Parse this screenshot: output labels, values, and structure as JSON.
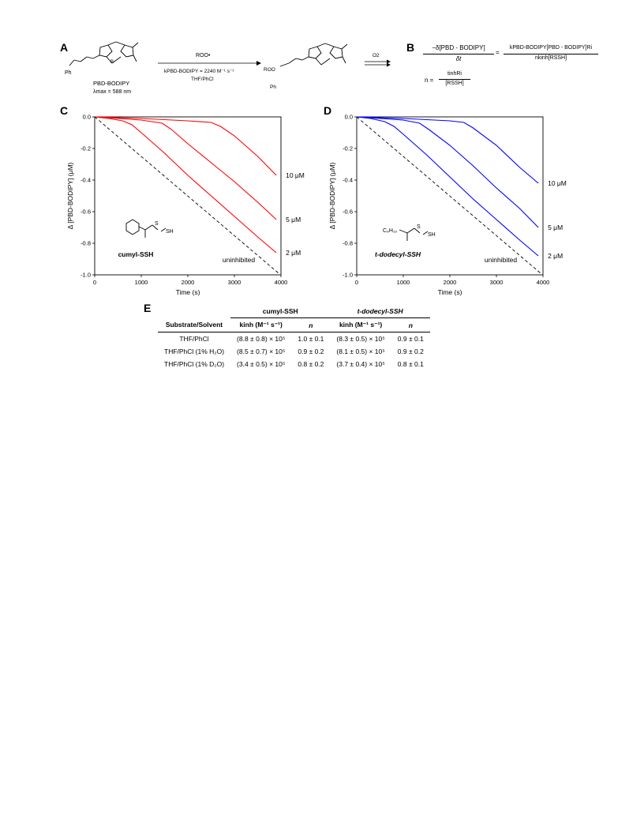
{
  "panels": {
    "A": "A",
    "B": "B",
    "C": "C",
    "D": "D",
    "E": "E"
  },
  "scheme": {
    "reagent_label": "PBD-BODIPY",
    "lambda_label": "λmax = 588 nm",
    "arrow_top": "ROO•",
    "arrow_rate": "kPBD-BODIPY = 2240 M⁻¹ s⁻¹",
    "arrow_solvent": "THF/PhCl",
    "o2_label": "O2",
    "ph_label": "Ph",
    "roo_label": "ROO"
  },
  "equations": {
    "eq1_left_num": "−δ[PBD - BODIPY]",
    "eq1_left_den": "δt",
    "eq1_right_num": "kPBD-BODIPY[PBD - BODIPY]Ri",
    "eq1_right_den": "nkinh[RSSH]",
    "eq2_left": "n =",
    "eq2_num": "tinhRi",
    "eq2_den": "[RSSH]"
  },
  "chart_data": [
    {
      "type": "line",
      "panel": "C",
      "xlabel": "Time (s)",
      "ylabel": "Δ [PBD-BODIPY] (μM)",
      "xlim": [
        0,
        4000
      ],
      "ylim": [
        -1.0,
        0.0
      ],
      "xticks": [
        0,
        1000,
        2000,
        3000,
        4000
      ],
      "yticks": [
        0.0,
        -0.2,
        -0.4,
        -0.6,
        -0.8,
        -1.0
      ],
      "color": "#ff0000",
      "compound_label": "cumyl-SSH",
      "series": [
        {
          "name": "10 μM",
          "x": [
            0,
            1000,
            2000,
            2500,
            2700,
            3000,
            3500,
            3900
          ],
          "y": [
            0,
            -0.01,
            -0.025,
            -0.035,
            -0.06,
            -0.12,
            -0.25,
            -0.37
          ]
        },
        {
          "name": "5 μM",
          "x": [
            0,
            500,
            1000,
            1450,
            1650,
            2000,
            2500,
            3000,
            3500,
            3900
          ],
          "y": [
            0,
            -0.01,
            -0.02,
            -0.04,
            -0.08,
            -0.17,
            -0.29,
            -0.41,
            -0.54,
            -0.65
          ]
        },
        {
          "name": "2 μM",
          "x": [
            0,
            300,
            600,
            800,
            1000,
            1500,
            2000,
            2500,
            3000,
            3500,
            3900
          ],
          "y": [
            0,
            -0.01,
            -0.025,
            -0.05,
            -0.1,
            -0.23,
            -0.37,
            -0.5,
            -0.63,
            -0.76,
            -0.86
          ]
        },
        {
          "name": "uninhibited",
          "x": [
            0,
            3950
          ],
          "y": [
            0,
            -0.99
          ]
        }
      ]
    },
    {
      "type": "line",
      "panel": "D",
      "xlabel": "Time (s)",
      "ylabel": "Δ [PBD-BODIPY] (μM)",
      "xlim": [
        0,
        4000
      ],
      "ylim": [
        -1.0,
        0.0
      ],
      "xticks": [
        0,
        1000,
        2000,
        3000,
        4000
      ],
      "yticks": [
        0.0,
        -0.2,
        -0.4,
        -0.6,
        -0.8,
        -1.0
      ],
      "color": "#0000ff",
      "compound_label": "t-dodecyl-SSH",
      "series": [
        {
          "name": "10 μM",
          "x": [
            0,
            1000,
            2000,
            2300,
            2500,
            3000,
            3500,
            3900
          ],
          "y": [
            0,
            -0.01,
            -0.025,
            -0.035,
            -0.07,
            -0.18,
            -0.32,
            -0.42
          ]
        },
        {
          "name": "5 μM",
          "x": [
            0,
            500,
            1000,
            1350,
            1550,
            2000,
            2500,
            3000,
            3500,
            3900
          ],
          "y": [
            0,
            -0.01,
            -0.02,
            -0.04,
            -0.08,
            -0.18,
            -0.31,
            -0.45,
            -0.58,
            -0.7
          ]
        },
        {
          "name": "2 μM",
          "x": [
            0,
            300,
            600,
            800,
            1000,
            1500,
            2000,
            2500,
            3000,
            3500,
            3900
          ],
          "y": [
            0,
            -0.01,
            -0.03,
            -0.06,
            -0.11,
            -0.24,
            -0.38,
            -0.52,
            -0.65,
            -0.78,
            -0.88
          ]
        },
        {
          "name": "uninhibited",
          "x": [
            0,
            3950
          ],
          "y": [
            0,
            -0.99
          ]
        }
      ]
    }
  ],
  "table": {
    "group_headers": [
      "cumyl-SSH",
      "t-dodecyl-SSH"
    ],
    "col_headers": [
      "Substrate/Solvent",
      "kinh (M⁻¹ s⁻¹)",
      "n",
      "kinh (M⁻¹ s⁻¹)",
      "n"
    ],
    "rows": [
      [
        "THF/PhCl",
        "(8.8 ± 0.8) × 10⁵",
        "1.0 ± 0.1",
        "(8.3 ± 0.5) × 10⁵",
        "0.9 ± 0.1"
      ],
      [
        "THF/PhCl (1% H₂O)",
        "(8.5 ± 0.7) × 10⁵",
        "0.9 ± 0.2",
        "(8.1 ± 0.5) × 10⁵",
        "0.9 ± 0.2"
      ],
      [
        "THF/PhCl (1% D₂O)",
        "(3.4 ± 0.5) × 10⁵",
        "0.8 ± 0.2",
        "(3.7 ± 0.4) × 10⁵",
        "0.8 ± 0.1"
      ]
    ]
  }
}
